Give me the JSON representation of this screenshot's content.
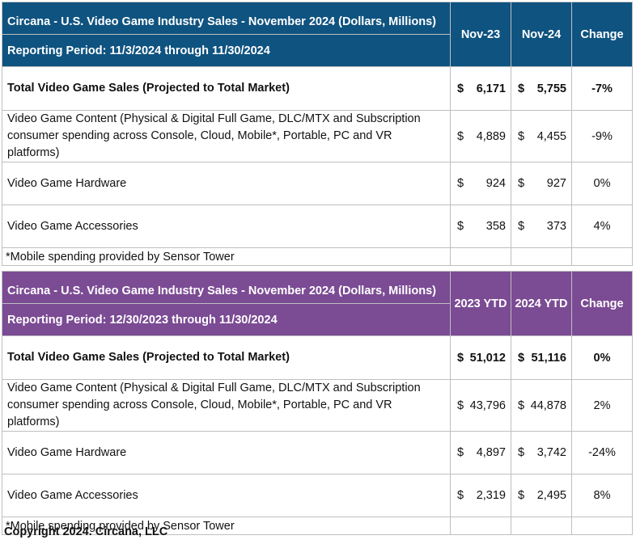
{
  "table1": {
    "title": "Circana - U.S. Video Game Industry Sales - November 2024 (Dollars, Millions)",
    "period": "Reporting Period: 11/3/2024 through 11/30/2024",
    "col1": "Nov-23",
    "col2": "Nov-24",
    "col3": "Change",
    "header_color": "#0f5380",
    "rows": [
      {
        "label": "Total Video Game Sales (Projected to Total Market)",
        "cur1": "$",
        "v1": "6,171",
        "cur2": "$",
        "v2": "5,755",
        "change": "-7%"
      },
      {
        "label": "Video Game Content (Physical & Digital Full Game, DLC/MTX and Subscription consumer spending across Console, Cloud, Mobile*, Portable, PC and VR platforms)",
        "cur1": "$",
        "v1": "4,889",
        "cur2": "$",
        "v2": "4,455",
        "change": "-9%"
      },
      {
        "label": "Video Game Hardware",
        "cur1": "$",
        "v1": "924",
        "cur2": "$",
        "v2": "927",
        "change": "0%"
      },
      {
        "label": "Video Game Accessories",
        "cur1": "$",
        "v1": "358",
        "cur2": "$",
        "v2": "373",
        "change": "4%"
      }
    ],
    "note": "*Mobile spending provided by Sensor Tower"
  },
  "table2": {
    "title": "Circana - U.S. Video Game Industry Sales - November 2024 (Dollars, Millions)",
    "period": "Reporting Period: 12/30/2023 through 11/30/2024",
    "col1": "2023 YTD",
    "col2": "2024 YTD",
    "col3": "Change",
    "header_color": "#7b4b94",
    "rows": [
      {
        "label": "Total Video Game Sales (Projected to Total Market)",
        "cur1": "$",
        "v1": "51,012",
        "cur2": "$",
        "v2": "51,116",
        "change": "0%"
      },
      {
        "label": "Video Game Content (Physical & Digital Full Game, DLC/MTX and Subscription consumer spending across Console, Cloud, Mobile*, Portable, PC and VR platforms)",
        "cur1": "$",
        "v1": "43,796",
        "cur2": "$",
        "v2": "44,878",
        "change": "2%"
      },
      {
        "label": "Video Game Hardware",
        "cur1": "$",
        "v1": "4,897",
        "cur2": "$",
        "v2": "3,742",
        "change": "-24%"
      },
      {
        "label": "Video Game Accessories",
        "cur1": "$",
        "v1": "2,319",
        "cur2": "$",
        "v2": "2,495",
        "change": "8%"
      }
    ],
    "note": "*Mobile spending provided by Sensor Tower"
  },
  "copyright": "Copyright 2024. Circana, LLC"
}
